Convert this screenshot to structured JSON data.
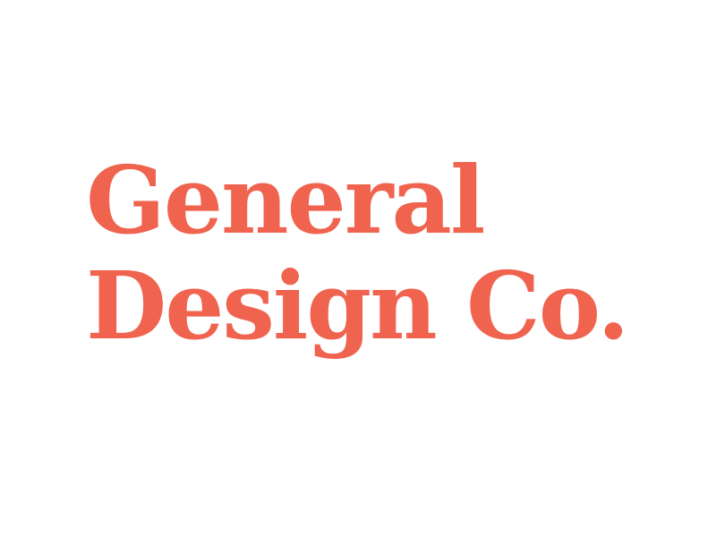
{
  "logo": {
    "line1": "General",
    "line2": "Design Co."
  },
  "colors": {
    "brand": "#f0634f",
    "background": "#ffffff"
  }
}
